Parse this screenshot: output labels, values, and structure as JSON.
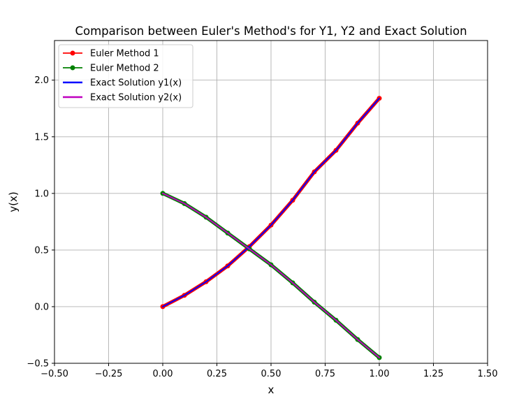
{
  "chart_data": {
    "type": "line",
    "title": "Comparison between Euler's Method's for Y1, Y2 and Exact Solution",
    "xlabel": "x",
    "ylabel": "y(x)",
    "xlim": [
      -0.5,
      1.5
    ],
    "ylim": [
      -0.5,
      2.35
    ],
    "xticks": [
      -0.5,
      -0.25,
      0.0,
      0.25,
      0.5,
      0.75,
      1.0,
      1.25,
      1.5
    ],
    "xtick_labels": [
      "−0.50",
      "−0.25",
      "0.00",
      "0.25",
      "0.50",
      "0.75",
      "1.00",
      "1.25",
      "1.50"
    ],
    "yticks": [
      -0.5,
      0.0,
      0.5,
      1.0,
      1.5,
      2.0
    ],
    "ytick_labels": [
      "−0.5",
      "0.0",
      "0.5",
      "1.0",
      "1.5",
      "2.0"
    ],
    "grid": true,
    "legend_position": "upper-left",
    "series": [
      {
        "name": "Euler Method 1",
        "color": "#ff0000",
        "marker": "circle",
        "x": [
          0.0,
          0.1,
          0.2,
          0.3,
          0.4,
          0.5,
          0.6,
          0.7,
          0.8,
          0.9,
          1.0
        ],
        "y": [
          0.0,
          0.1,
          0.22,
          0.36,
          0.53,
          0.72,
          0.94,
          1.19,
          1.38,
          1.62,
          1.84
        ]
      },
      {
        "name": "Euler Method 2",
        "color": "#008000",
        "marker": "circle",
        "x": [
          0.0,
          0.1,
          0.2,
          0.3,
          0.4,
          0.5,
          0.6,
          0.7,
          0.8,
          0.9,
          1.0
        ],
        "y": [
          1.0,
          0.91,
          0.79,
          0.65,
          0.51,
          0.37,
          0.21,
          0.04,
          -0.12,
          -0.29,
          -0.45
        ]
      },
      {
        "name": "Exact Solution y1(x)",
        "color": "#0000ff",
        "marker": "none",
        "x": [
          0.0,
          0.1,
          0.2,
          0.3,
          0.4,
          0.5,
          0.6,
          0.7,
          0.8,
          0.9,
          1.0
        ],
        "y": [
          0.0,
          0.1,
          0.22,
          0.36,
          0.53,
          0.72,
          0.94,
          1.19,
          1.38,
          1.62,
          1.84
        ]
      },
      {
        "name": "Exact Solution y2(x)",
        "color": "#bf00bf",
        "marker": "none",
        "x": [
          0.0,
          0.1,
          0.2,
          0.3,
          0.4,
          0.5,
          0.6,
          0.7,
          0.8,
          0.9,
          1.0
        ],
        "y": [
          1.0,
          0.91,
          0.79,
          0.65,
          0.51,
          0.37,
          0.21,
          0.04,
          -0.12,
          -0.29,
          -0.45
        ]
      }
    ]
  }
}
